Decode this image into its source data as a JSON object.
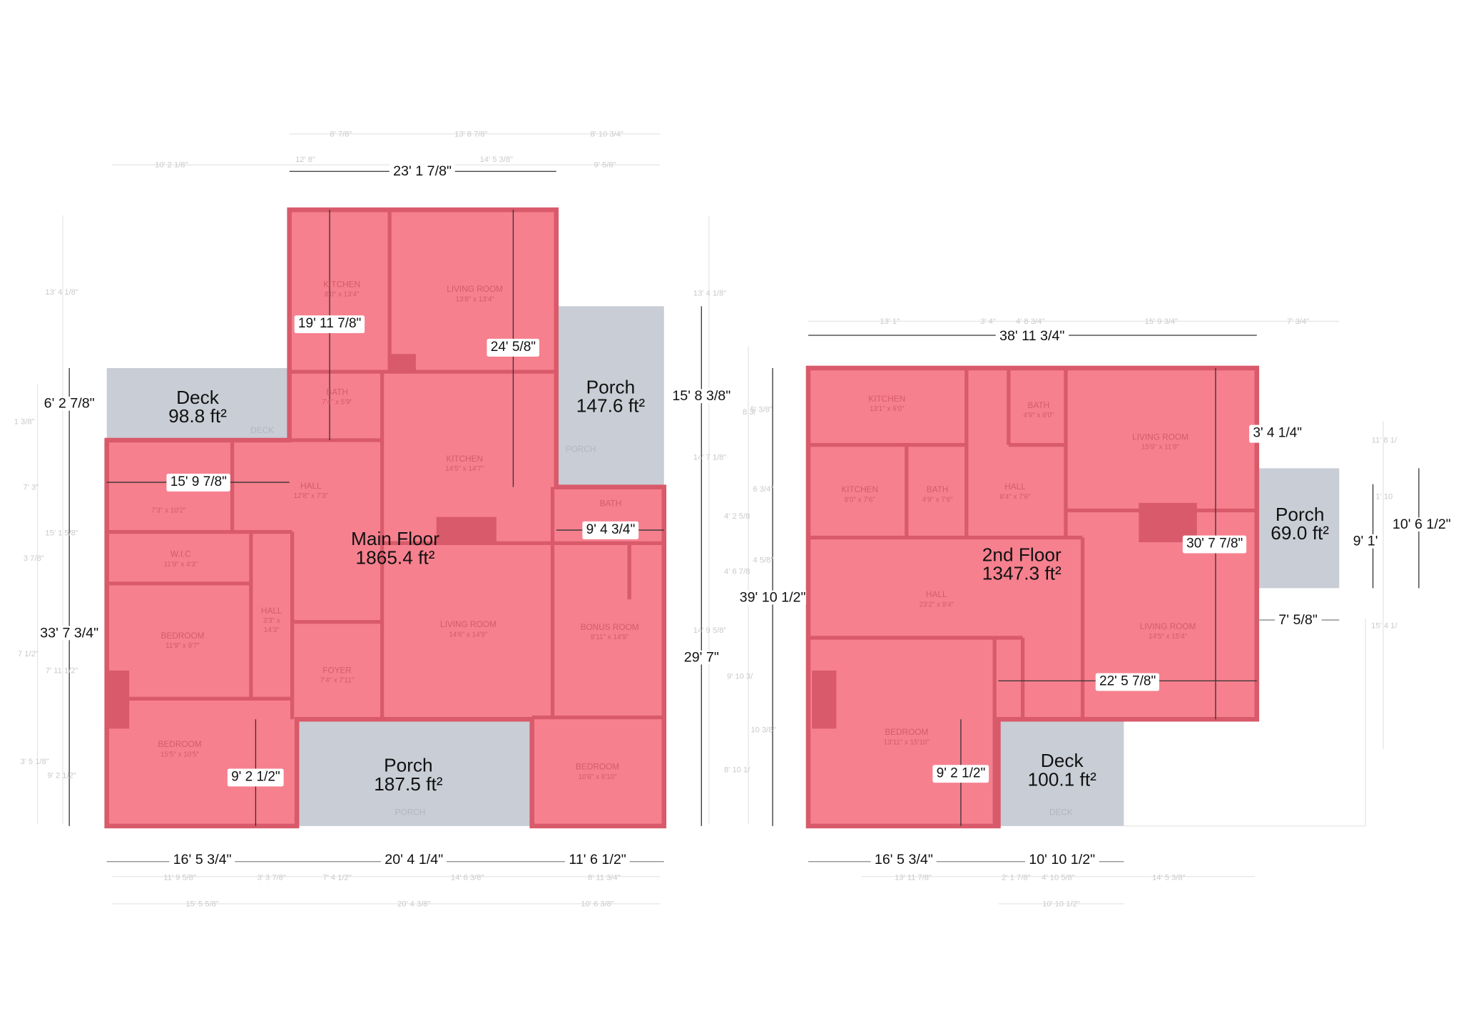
{
  "colors": {
    "floor_fill": "#f6808e",
    "wall": "#d95a6a",
    "outdoor_fill": "#c9cdd5",
    "dimension_line": "#555555"
  },
  "main_floor": {
    "title": "Main Floor",
    "area": "1865.4 ft²",
    "outdoor": [
      {
        "name": "Deck",
        "area": "98.8 ft²"
      },
      {
        "name": "Porch",
        "area": "147.6 ft²"
      },
      {
        "name": "Porch",
        "area": "187.5 ft²"
      }
    ],
    "dimensions": {
      "top": "23' 1 7/8\"",
      "left": "33' 7 3/4\"",
      "deck_side": "6' 2 7/8\"",
      "right_upper": "15' 8 3/8\"",
      "right_total": "29' 7\"",
      "bottom": [
        "16' 5 3/4\"",
        "20' 4 1/4\"",
        "11' 6 1/2\""
      ],
      "inner": [
        "19' 11 7/8\"",
        "24' 5/8\"",
        "15' 9 7/8\"",
        "9' 4 3/4\"",
        "9' 2 1/2\""
      ]
    },
    "rooms": [
      {
        "name": "KITCHEN",
        "dims": "8'0\" x 13'4\""
      },
      {
        "name": "LIVING ROOM",
        "dims": "13'8\" x 13'4\""
      },
      {
        "name": "BATH",
        "dims": "7'4\" x 5'9\""
      },
      {
        "name": "KITCHEN",
        "dims": "14'5\" x 14'7\""
      },
      {
        "name": "HALL",
        "dims": "12'8\" x 7'3\""
      },
      {
        "name": "",
        "dims": "7'3\" x 10'2\""
      },
      {
        "name": "W.I.C",
        "dims": "11'9\" x 4'3\""
      },
      {
        "name": "BEDROOM",
        "dims": "11'9\" x 9'7\""
      },
      {
        "name": "HALL",
        "dims": "3'3\" x 14'3\""
      },
      {
        "name": "FOYER",
        "dims": "7'4\" x 7'11\""
      },
      {
        "name": "LIVING ROOM",
        "dims": "14'6\" x 14'9\""
      },
      {
        "name": "BONUS ROOM",
        "dims": "8'11\" x 14'9\""
      },
      {
        "name": "BATH",
        "dims": ""
      },
      {
        "name": "BEDROOM",
        "dims": "15'5\" x 10'5\""
      },
      {
        "name": "BEDROOM",
        "dims": "10'6\" x 8'10\""
      },
      {
        "name": "DECK",
        "dims": ""
      },
      {
        "name": "PORCH",
        "dims": ""
      },
      {
        "name": "PORCH",
        "dims": ""
      }
    ],
    "faint": {
      "top1": [
        "8' 7/8\"",
        "13' 8 7/8\"",
        "8' 10 3/4\""
      ],
      "top2": [
        "10' 2 1/8\"",
        "12' 8\"",
        "14' 5 3/8\"",
        "9' 5/8\""
      ],
      "bottom1": [
        "11' 9 5/8\"",
        "3' 3 7/8\"",
        "7' 4 1/2\"",
        "14' 6 3/8\"",
        "8' 11 3/4\""
      ],
      "bottom2": [
        "15' 5 5/8\"",
        "20' 4 3/8\"",
        "10' 6 3/8\""
      ],
      "left": [
        "13' 4 1/8\"",
        "1 3/8\"",
        "7' 3\"",
        "15' 1 5/8\"",
        "3 7/8\"",
        "7 1/2\"",
        "7' 11 1/2\"",
        "3' 5 1/8\"",
        "9' 2 1/2\""
      ],
      "right": [
        "13' 4 1/8\"",
        "8 3/",
        "14' 7 1/8\"",
        "4' 2 5/8",
        "4' 6 7/8",
        "14' 9 5/8\"",
        "9' 10 3/",
        "8' 10 1/"
      ]
    }
  },
  "second_floor": {
    "title": "2nd Floor",
    "area": "1347.3 ft²",
    "outdoor": [
      {
        "name": "Porch",
        "area": "69.0 ft²"
      },
      {
        "name": "Deck",
        "area": "100.1 ft²"
      }
    ],
    "dimensions": {
      "top": "38' 11 3/4\"",
      "left": "39' 10 1/2\"",
      "porch_a": "9' 1'",
      "porch_b": "10' 6 1/2\"",
      "porch_offset": "7' 5/8\"",
      "bottom": [
        "16' 5 3/4\"",
        "10' 10 1/2\""
      ],
      "inner": [
        "3' 4 1/4\"",
        "30' 7 7/8\"",
        "22' 5 7/8\"",
        "9' 2 1/2\""
      ]
    },
    "rooms": [
      {
        "name": "KITCHEN",
        "dims": "13'1\" x 6'0\""
      },
      {
        "name": "BATH",
        "dims": "4'9\" x 6'0\""
      },
      {
        "name": "LIVING ROOM",
        "dims": "15'9\" x 11'8\""
      },
      {
        "name": "KITCHEN",
        "dims": "8'0\" x 7'6\""
      },
      {
        "name": "BATH",
        "dims": "4'9\" x 7'6\""
      },
      {
        "name": "HALL",
        "dims": "8'4\" x 7'6\""
      },
      {
        "name": "HALL",
        "dims": "23'2\" x 8'4\""
      },
      {
        "name": "LIVING ROOM",
        "dims": "14'5\" x 15'4\""
      },
      {
        "name": "BEDROOM",
        "dims": "13'11\" x 15'10\""
      },
      {
        "name": "DECK",
        "dims": ""
      }
    ],
    "faint": {
      "top": [
        "13' 1\"",
        "3' 4\"",
        "4' 8 3/4\"",
        "15' 9 3/4\"",
        "7' 3/4\""
      ],
      "bottom1": [
        "13' 11 7/8\"",
        "2' 1 7/8\"",
        "4' 10 5/8\"",
        "14' 5 3/8\""
      ],
      "bottom2": [
        "10' 10 1/2\""
      ],
      "left": [
        "5' 3/8\"",
        "6 3/4\"",
        "4 5/8\"",
        "10 3/8\""
      ],
      "right": [
        "11' 8 1/",
        "1' 10",
        "15' 4 1/"
      ]
    }
  }
}
